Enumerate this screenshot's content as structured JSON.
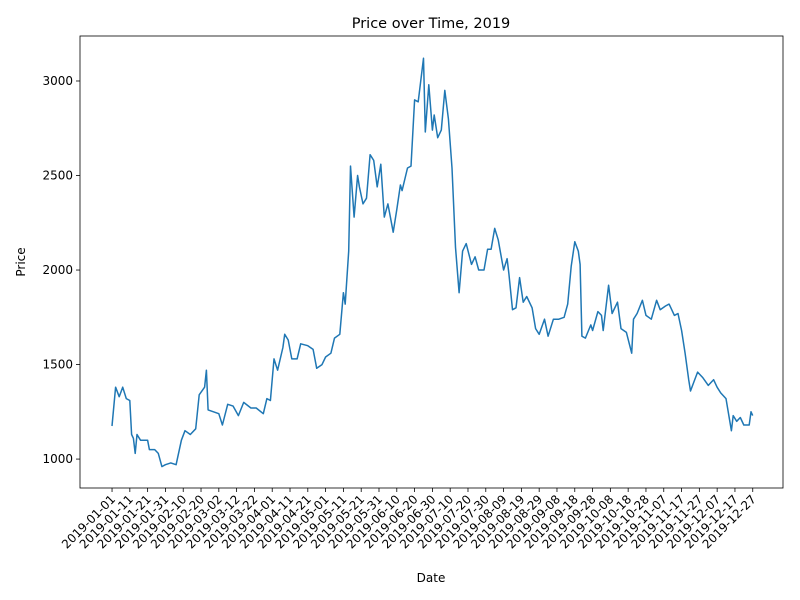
{
  "chart_data": {
    "type": "line",
    "title": "Price over Time, 2019",
    "x_label": "Date",
    "y_label": "Price",
    "color": "#1f77b4",
    "x": [
      "2019-01-01",
      "2019-01-03",
      "2019-01-05",
      "2019-01-07",
      "2019-01-09",
      "2019-01-11",
      "2019-01-12",
      "2019-01-13",
      "2019-01-14",
      "2019-01-15",
      "2019-01-17",
      "2019-01-21",
      "2019-01-22",
      "2019-01-25",
      "2019-01-27",
      "2019-01-29",
      "2019-01-31",
      "2019-02-03",
      "2019-02-06",
      "2019-02-09",
      "2019-02-11",
      "2019-02-14",
      "2019-02-17",
      "2019-02-19",
      "2019-02-22",
      "2019-02-23",
      "2019-02-24",
      "2019-02-27",
      "2019-03-02",
      "2019-03-04",
      "2019-03-07",
      "2019-03-10",
      "2019-03-13",
      "2019-03-16",
      "2019-03-20",
      "2019-03-23",
      "2019-03-27",
      "2019-03-29",
      "2019-03-31",
      "2019-04-02",
      "2019-04-04",
      "2019-04-07",
      "2019-04-08",
      "2019-04-10",
      "2019-04-12",
      "2019-04-15",
      "2019-04-17",
      "2019-04-21",
      "2019-04-24",
      "2019-04-26",
      "2019-04-29",
      "2019-05-01",
      "2019-05-04",
      "2019-05-06",
      "2019-05-09",
      "2019-05-11",
      "2019-05-12",
      "2019-05-14",
      "2019-05-15",
      "2019-05-17",
      "2019-05-19",
      "2019-05-20",
      "2019-05-22",
      "2019-05-24",
      "2019-05-26",
      "2019-05-28",
      "2019-05-30",
      "2019-06-01",
      "2019-06-03",
      "2019-06-05",
      "2019-06-08",
      "2019-06-10",
      "2019-06-12",
      "2019-06-13",
      "2019-06-16",
      "2019-06-18",
      "2019-06-20",
      "2019-06-22",
      "2019-06-25",
      "2019-06-26",
      "2019-06-28",
      "2019-06-30",
      "2019-07-01",
      "2019-07-03",
      "2019-07-05",
      "2019-07-07",
      "2019-07-09",
      "2019-07-11",
      "2019-07-13",
      "2019-07-15",
      "2019-07-17",
      "2019-07-19",
      "2019-07-22",
      "2019-07-24",
      "2019-07-26",
      "2019-07-29",
      "2019-07-31",
      "2019-08-02",
      "2019-08-04",
      "2019-08-06",
      "2019-08-09",
      "2019-08-11",
      "2019-08-12",
      "2019-08-14",
      "2019-08-16",
      "2019-08-18",
      "2019-08-20",
      "2019-08-22",
      "2019-08-25",
      "2019-08-27",
      "2019-08-29",
      "2019-09-01",
      "2019-09-03",
      "2019-09-06",
      "2019-09-09",
      "2019-09-12",
      "2019-09-14",
      "2019-09-16",
      "2019-09-18",
      "2019-09-20",
      "2019-09-21",
      "2019-09-22",
      "2019-09-24",
      "2019-09-27",
      "2019-09-28",
      "2019-10-01",
      "2019-10-03",
      "2019-10-04",
      "2019-10-07",
      "2019-10-09",
      "2019-10-12",
      "2019-10-14",
      "2019-10-17",
      "2019-10-20",
      "2019-10-21",
      "2019-10-23",
      "2019-10-26",
      "2019-10-28",
      "2019-10-31",
      "2019-11-03",
      "2019-11-05",
      "2019-11-08",
      "2019-11-10",
      "2019-11-13",
      "2019-11-15",
      "2019-11-17",
      "2019-11-19",
      "2019-11-21",
      "2019-11-22",
      "2019-11-24",
      "2019-11-26",
      "2019-11-29",
      "2019-12-02",
      "2019-12-05",
      "2019-12-07",
      "2019-12-09",
      "2019-12-12",
      "2019-12-15",
      "2019-12-16",
      "2019-12-18",
      "2019-12-20",
      "2019-12-22",
      "2019-12-25",
      "2019-12-26",
      "2019-12-27"
    ],
    "values": [
      1175,
      1380,
      1330,
      1380,
      1320,
      1310,
      1130,
      1110,
      1030,
      1130,
      1100,
      1100,
      1050,
      1050,
      1030,
      960,
      970,
      980,
      970,
      1100,
      1150,
      1130,
      1160,
      1340,
      1380,
      1470,
      1260,
      1250,
      1240,
      1180,
      1290,
      1280,
      1230,
      1300,
      1270,
      1270,
      1240,
      1320,
      1310,
      1530,
      1470,
      1590,
      1660,
      1630,
      1530,
      1530,
      1610,
      1600,
      1580,
      1480,
      1500,
      1540,
      1560,
      1640,
      1660,
      1880,
      1820,
      2100,
      2550,
      2280,
      2500,
      2440,
      2350,
      2380,
      2610,
      2580,
      2440,
      2560,
      2280,
      2350,
      2200,
      2320,
      2450,
      2420,
      2540,
      2550,
      2900,
      2890,
      3120,
      2730,
      2980,
      2740,
      2820,
      2700,
      2740,
      2950,
      2800,
      2540,
      2120,
      1880,
      2100,
      2140,
      2030,
      2070,
      2000,
      2000,
      2110,
      2110,
      2220,
      2160,
      2000,
      2060,
      1980,
      1790,
      1800,
      1960,
      1830,
      1860,
      1800,
      1690,
      1660,
      1740,
      1650,
      1740,
      1740,
      1750,
      1820,
      2020,
      2150,
      2100,
      2030,
      1650,
      1640,
      1710,
      1680,
      1780,
      1760,
      1680,
      1920,
      1770,
      1830,
      1690,
      1670,
      1560,
      1740,
      1770,
      1840,
      1760,
      1740,
      1840,
      1790,
      1810,
      1820,
      1760,
      1770,
      1680,
      1560,
      1420,
      1360,
      1410,
      1460,
      1430,
      1390,
      1420,
      1380,
      1350,
      1320,
      1150,
      1230,
      1200,
      1220,
      1180,
      1180,
      1250,
      1230
    ],
    "xlim": [
      "2018-12-14",
      "2020-01-13"
    ],
    "xticks": [
      "2019-01-01",
      "2019-01-11",
      "2019-01-21",
      "2019-01-31",
      "2019-02-10",
      "2019-02-20",
      "2019-03-02",
      "2019-03-12",
      "2019-03-22",
      "2019-04-01",
      "2019-04-11",
      "2019-04-21",
      "2019-05-01",
      "2019-05-11",
      "2019-05-21",
      "2019-05-31",
      "2019-06-10",
      "2019-06-20",
      "2019-06-30",
      "2019-07-10",
      "2019-07-20",
      "2019-07-30",
      "2019-08-09",
      "2019-08-19",
      "2019-08-29",
      "2019-09-08",
      "2019-09-18",
      "2019-09-28",
      "2019-10-08",
      "2019-10-18",
      "2019-10-28",
      "2019-11-07",
      "2019-11-17",
      "2019-11-27",
      "2019-12-07",
      "2019-12-17",
      "2019-12-27"
    ],
    "ylim": [
      847,
      3238
    ],
    "yticks": [
      1000,
      1500,
      2000,
      2500,
      3000
    ],
    "grid": false
  }
}
